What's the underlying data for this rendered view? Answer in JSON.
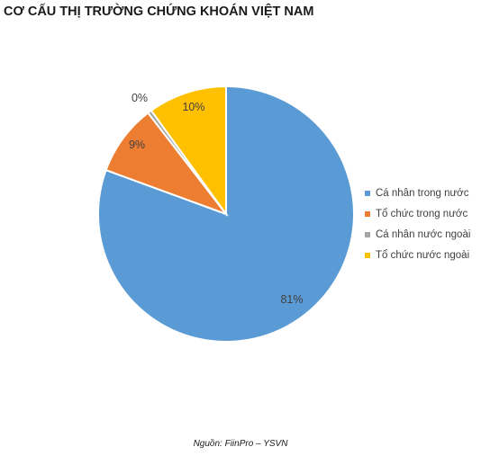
{
  "chart_data": {
    "type": "pie",
    "title": "CƠ CẤU THỊ TRƯỜNG CHỨNG KHOÁN VIỆT NAM",
    "categories": [
      "Cá nhân trong nước",
      "Tổ chức trong nước",
      "Cá nhân nước ngoài",
      "Tổ chức nước ngoài"
    ],
    "values": [
      81,
      9,
      0,
      10
    ],
    "labels": [
      "81%",
      "9%",
      "0%",
      "10%"
    ],
    "colors": [
      "#5b9bd5",
      "#ed7d31",
      "#a5a5a5",
      "#ffc000"
    ],
    "legend_position": "right",
    "source": "Nguồn: FiinPro – YSVN"
  }
}
